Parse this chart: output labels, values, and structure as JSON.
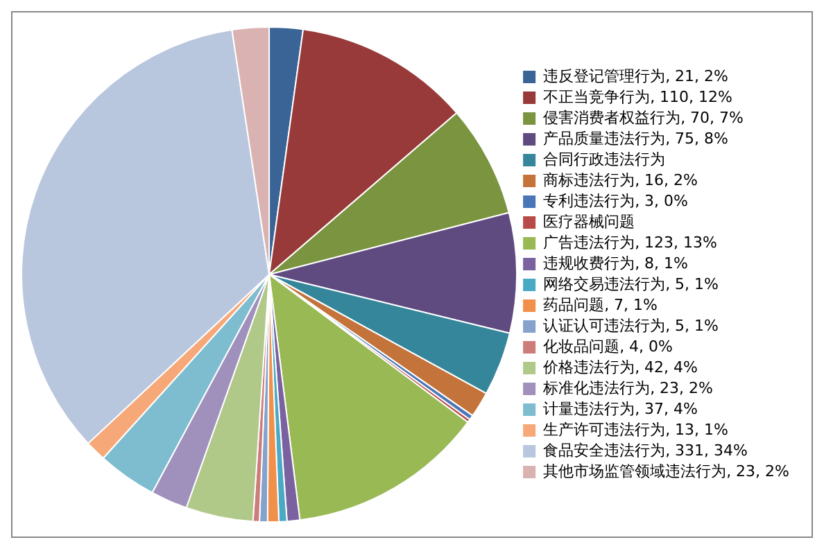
{
  "chart_data": {
    "type": "pie",
    "categories": [
      "违反登记管理行为",
      "不正当竞争行为",
      "侵害消费者权益行为",
      "产品质量违法行为",
      "合同行政违法行为",
      "商标违法行为",
      "专利违法行为",
      "医疗器械问题",
      "广告违法行为",
      "违规收费行为",
      "网络交易违法行为",
      "药品问题",
      "认证认可违法行为",
      "化妆品问题",
      "价格违法行为",
      "标准化违法行为",
      "计量违法行为",
      "生产许可违法行为",
      "食品安全违法行为",
      "其他市场监管领域违法行为"
    ],
    "values": [
      21,
      110,
      70,
      75,
      40,
      16,
      3,
      2,
      123,
      8,
      5,
      7,
      5,
      4,
      42,
      23,
      37,
      13,
      331,
      23
    ],
    "value_labels": [
      "21, 2%",
      "110, 12%",
      "70, 7%",
      "75, 8%",
      null,
      "16, 2%",
      "3, 0%",
      null,
      "123, 13%",
      "8, 1%",
      "5, 1%",
      "7, 1%",
      "5, 1%",
      "4, 0%",
      "42, 4%",
      "23, 2%",
      "37, 4%",
      "13, 1%",
      "331, 34%",
      "23, 2%"
    ],
    "colors": [
      "#3a6496",
      "#983a3a",
      "#7a9440",
      "#5f4b80",
      "#35869a",
      "#c4733a",
      "#4a76b8",
      "#b84a48",
      "#98b954",
      "#7a62a0",
      "#4aaac6",
      "#f0904a",
      "#84a2cc",
      "#cc7c7a",
      "#b0c888",
      "#a090bc",
      "#7ebcd0",
      "#f6a878",
      "#b8c6de",
      "#dab2b2"
    ],
    "legend": "right"
  }
}
